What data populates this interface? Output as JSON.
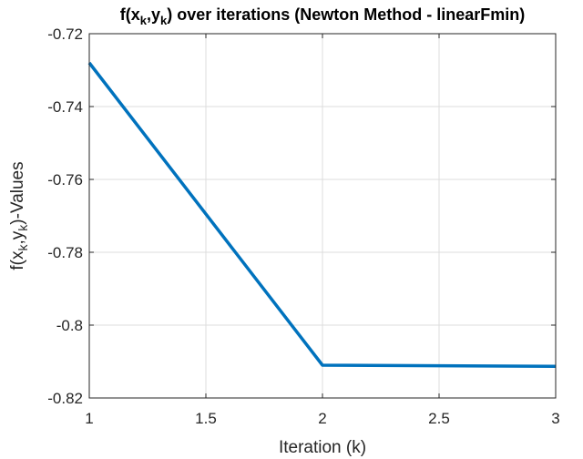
{
  "chart_data": {
    "type": "line",
    "title": {
      "pre": "f(x",
      "sub1": "k",
      "mid": ",y",
      "sub2": "k",
      "post": ") over iterations (Newton Method - linearFmin)"
    },
    "xlabel": "Iteration (k)",
    "ylabel": {
      "pre": "f(x",
      "sub1": "k",
      "mid": ",y",
      "sub2": "k",
      "post": ")-Values"
    },
    "xlim": [
      1,
      3
    ],
    "ylim": [
      -0.82,
      -0.72
    ],
    "xticks": [
      1,
      1.5,
      2,
      2.5,
      3
    ],
    "xtick_labels": [
      "1",
      "1.5",
      "2",
      "2.5",
      "3"
    ],
    "yticks": [
      -0.82,
      -0.8,
      -0.78,
      -0.76,
      -0.74,
      -0.72
    ],
    "ytick_labels": [
      "-0.82",
      "-0.8",
      "-0.78",
      "-0.76",
      "-0.74",
      "-0.72"
    ],
    "grid": true,
    "series": [
      {
        "x": [
          1,
          2,
          3
        ],
        "y": [
          -0.728,
          -0.811,
          -0.8113
        ],
        "color": "#0072bd"
      }
    ]
  }
}
